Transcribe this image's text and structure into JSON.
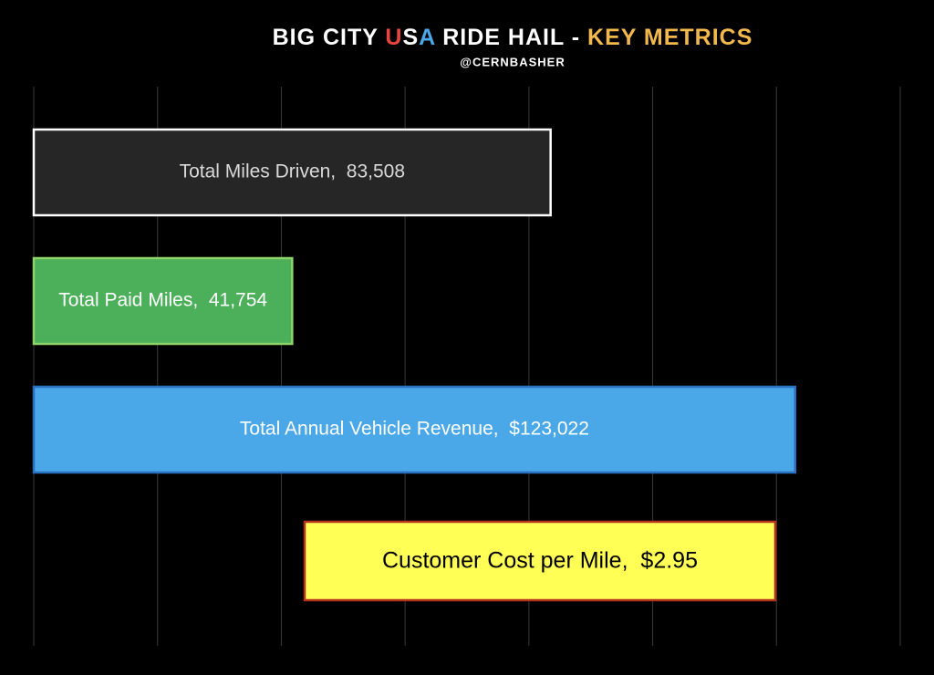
{
  "chart_data": {
    "type": "barh",
    "title_parts": [
      {
        "text": "BIG CITY ",
        "color": "#ffffff"
      },
      {
        "text": "U",
        "color": "#e8453c"
      },
      {
        "text": "S",
        "color": "#ffffff"
      },
      {
        "text": "A",
        "color": "#4aa8e8"
      },
      {
        "text": " RIDE HAIL - ",
        "color": "#ffffff"
      },
      {
        "text": "KEY METRICS",
        "color": "#f2b84b"
      }
    ],
    "subtitle": "@CERNBASHER",
    "values": [
      83508,
      41754,
      123022
    ],
    "value_labels": [
      "Total Miles Driven,  83,508",
      "Total Paid Miles,  41,754",
      "Total Annual Vehicle Revenue,  $123,022"
    ],
    "colors": [
      "#262626",
      "#4caf5a",
      "#4aa8e8"
    ],
    "edge_colors": [
      "#ffffff",
      "#8fd46a",
      "#2a6fc0"
    ],
    "text_colors": [
      "#d9d9d9",
      "#ffffff",
      "#ffffff"
    ],
    "xlim": [
      0,
      140000
    ],
    "xticks": [
      0,
      20000,
      40000,
      60000,
      80000,
      100000,
      120000,
      140000
    ],
    "grid": true,
    "annotation": {
      "text": "Customer Cost per Mile,  $2.95",
      "color": "#ffff55",
      "edge_color": "#b5321f"
    }
  }
}
